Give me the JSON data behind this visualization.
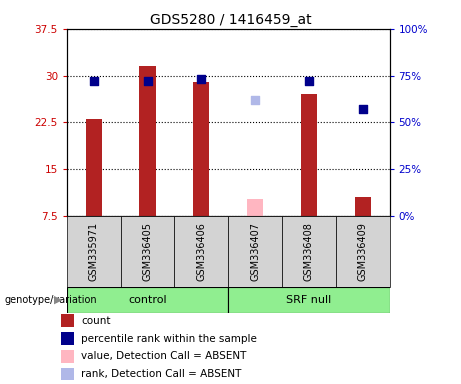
{
  "title": "GDS5280 / 1416459_at",
  "samples": [
    "GSM335971",
    "GSM336405",
    "GSM336406",
    "GSM336407",
    "GSM336408",
    "GSM336409"
  ],
  "count_values": [
    23.0,
    31.5,
    29.0,
    null,
    27.0,
    10.5
  ],
  "count_absent_values": [
    null,
    null,
    null,
    10.2,
    null,
    null
  ],
  "percentile_values": [
    72,
    72,
    73,
    null,
    72,
    57
  ],
  "percentile_absent_values": [
    null,
    null,
    null,
    62,
    null,
    null
  ],
  "ylim_left": [
    7.5,
    37.5
  ],
  "ylim_right": [
    0,
    100
  ],
  "yticks_left": [
    7.5,
    15.0,
    22.5,
    30.0,
    37.5
  ],
  "yticks_right": [
    0,
    25,
    50,
    75,
    100
  ],
  "ytick_labels_left": [
    "7.5",
    "15",
    "22.5",
    "30",
    "37.5"
  ],
  "ytick_labels_right": [
    "0%",
    "25%",
    "50%",
    "75%",
    "100%"
  ],
  "bar_color": "#b22222",
  "bar_absent_color": "#ffb6c1",
  "dot_color": "#00008b",
  "dot_absent_color": "#b0b8e8",
  "control_color": "#90ee90",
  "srf_null_color": "#90ee90",
  "group_bar_bg": "#d3d3d3",
  "plot_bg": "#ffffff",
  "left_tick_color": "#cc0000",
  "right_tick_color": "#0000cc",
  "bar_width": 0.3,
  "dot_size": 28,
  "legend_items": [
    "count",
    "percentile rank within the sample",
    "value, Detection Call = ABSENT",
    "rank, Detection Call = ABSENT"
  ],
  "legend_colors": [
    "#b22222",
    "#00008b",
    "#ffb6c1",
    "#b0b8e8"
  ],
  "genotype_label": "genotype/variation"
}
